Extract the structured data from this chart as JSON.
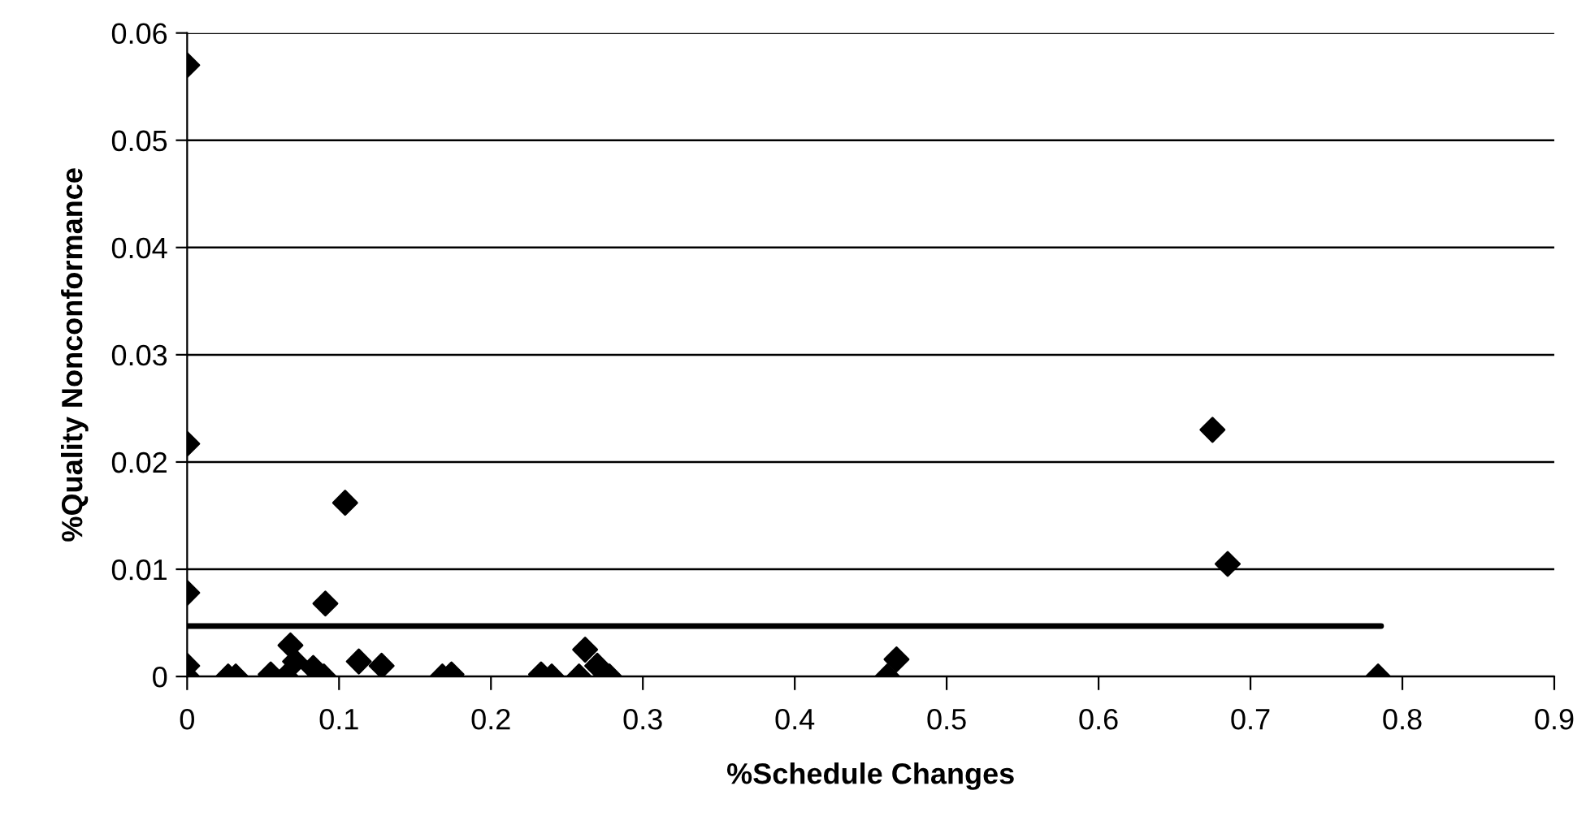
{
  "chart_data": {
    "type": "scatter",
    "xlabel": "%Schedule Changes",
    "ylabel": "%Quality Nonconformance",
    "xlim": [
      0,
      0.9
    ],
    "xticks": [
      0,
      0.1,
      0.2,
      0.3,
      0.4,
      0.5,
      0.6,
      0.7,
      0.8,
      0.9
    ],
    "ylim": [
      0,
      0.06
    ],
    "yticks": [
      0,
      0.01,
      0.02,
      0.03,
      0.04,
      0.05,
      0.06
    ],
    "grid": "y",
    "legend": false,
    "series": [
      {
        "marker": "diamond",
        "color": "#000000",
        "x": [
          0,
          0,
          0,
          0,
          0,
          0.027,
          0.032,
          0.055,
          0.065,
          0.068,
          0.071,
          0.083,
          0.09,
          0.091,
          0.104,
          0.113,
          0.128,
          0.168,
          0.174,
          0.233,
          0.24,
          0.258,
          0.262,
          0.27,
          0.278,
          0.461,
          0.467,
          0.675,
          0.685,
          0.784
        ],
        "values": [
          0.057,
          0.0217,
          0.0078,
          0.001,
          0,
          0,
          0,
          0.0002,
          0,
          0.0029,
          0.0014,
          0.0008,
          0,
          0.0068,
          0.0162,
          0.0014,
          0.001,
          0,
          0.0002,
          0.0002,
          0,
          0,
          0.0025,
          0.001,
          0,
          0,
          0.0016,
          0.023,
          0.0105,
          0
        ]
      },
      {
        "type": "line",
        "marker": "none",
        "color": "#000000",
        "x": [
          0,
          0.786
        ],
        "values": [
          0.0047,
          0.0047
        ]
      }
    ]
  }
}
